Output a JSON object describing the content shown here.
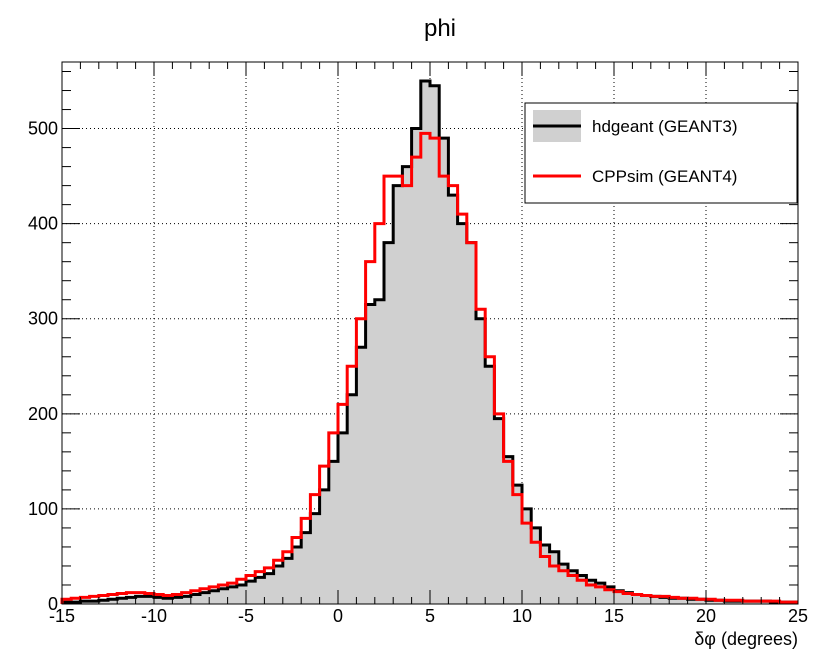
{
  "chart_data": {
    "type": "histogram",
    "title": "phi",
    "xlabel": "δφ (degrees)",
    "ylabel": "",
    "xlim": [
      -15,
      25
    ],
    "ylim": [
      0,
      570
    ],
    "grid": true,
    "legend_position": "top-right",
    "x_ticks": [
      "-15",
      "-10",
      "-5",
      "0",
      "5",
      "10",
      "15",
      "20",
      "25"
    ],
    "y_ticks": [
      "0",
      "100",
      "200",
      "300",
      "400",
      "500"
    ],
    "bin_width": 0.5,
    "x_start": -15,
    "series": [
      {
        "name": "hdgeant (GEANT3)",
        "line_color": "#000000",
        "fill_color": "#d0d0d0",
        "values": [
          2,
          2,
          3,
          3,
          4,
          5,
          6,
          7,
          8,
          8,
          7,
          6,
          7,
          8,
          10,
          12,
          14,
          16,
          18,
          20,
          24,
          28,
          32,
          40,
          48,
          60,
          75,
          95,
          120,
          150,
          180,
          220,
          270,
          315,
          320,
          380,
          440,
          460,
          500,
          550,
          545,
          490,
          430,
          400,
          380,
          300,
          250,
          195,
          155,
          125,
          100,
          80,
          62,
          55,
          42,
          35,
          30,
          25,
          22,
          18,
          14,
          12,
          10,
          9,
          8,
          7,
          6,
          6,
          5,
          5,
          4,
          4,
          3,
          3,
          3,
          3,
          3,
          2,
          2,
          2
        ]
      },
      {
        "name": "CPPsim  (GEANT4)",
        "line_color": "#ff0000",
        "fill_color": "none",
        "values": [
          5,
          6,
          7,
          8,
          9,
          10,
          11,
          12,
          12,
          11,
          10,
          9,
          10,
          12,
          14,
          16,
          18,
          20,
          22,
          26,
          30,
          34,
          38,
          46,
          55,
          70,
          90,
          115,
          145,
          180,
          210,
          250,
          300,
          360,
          400,
          450,
          450,
          440,
          470,
          495,
          490,
          450,
          440,
          410,
          380,
          310,
          260,
          200,
          150,
          115,
          85,
          65,
          50,
          40,
          35,
          30,
          25,
          20,
          18,
          15,
          13,
          11,
          10,
          9,
          8,
          8,
          7,
          6,
          6,
          5,
          5,
          4,
          4,
          4,
          3,
          3,
          3,
          3,
          2,
          2
        ]
      }
    ]
  }
}
